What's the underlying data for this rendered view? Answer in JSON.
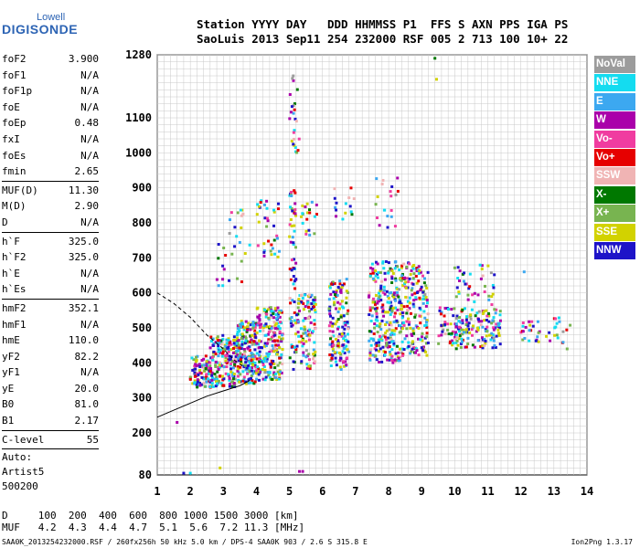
{
  "logo": {
    "line1": "Lowell",
    "line2": "DIGISONDE"
  },
  "header": {
    "row1": "Station YYYY DAY   DDD HHMMSS P1  FFS S AXN PPS IGA PS",
    "row2": "SaoLuis 2013 Sep11 254 232000 RSF 005 2 713 100 10+ 22"
  },
  "params": {
    "group1": [
      {
        "label": "foF2",
        "value": "3.900"
      },
      {
        "label": "foF1",
        "value": "N/A"
      },
      {
        "label": "foF1p",
        "value": "N/A"
      },
      {
        "label": "foE",
        "value": "N/A"
      },
      {
        "label": "foEp",
        "value": "0.48"
      },
      {
        "label": "fxI",
        "value": "N/A"
      },
      {
        "label": "foEs",
        "value": "N/A"
      },
      {
        "label": "fmin",
        "value": "2.65"
      }
    ],
    "group2": [
      {
        "label": "MUF(D)",
        "value": "11.30"
      },
      {
        "label": "M(D)",
        "value": "2.90"
      },
      {
        "label": "D",
        "value": "N/A"
      }
    ],
    "group3": [
      {
        "label": "h`F",
        "value": "325.0"
      },
      {
        "label": "h`F2",
        "value": "325.0"
      },
      {
        "label": "h`E",
        "value": "N/A"
      },
      {
        "label": "h`Es",
        "value": "N/A"
      }
    ],
    "group4": [
      {
        "label": "hmF2",
        "value": "352.1"
      },
      {
        "label": "hmF1",
        "value": "N/A"
      },
      {
        "label": "hmE",
        "value": "110.0"
      },
      {
        "label": "yF2",
        "value": "82.2"
      },
      {
        "label": "yF1",
        "value": "N/A"
      },
      {
        "label": "yE",
        "value": "20.0"
      },
      {
        "label": "B0",
        "value": "81.0"
      },
      {
        "label": "B1",
        "value": "2.17"
      }
    ],
    "group5": [
      {
        "label": "C-level",
        "value": "55"
      }
    ],
    "auto": [
      "Auto:",
      "Artist5",
      "500200"
    ]
  },
  "bottom": {
    "d_row": "D     100  200  400  600  800 1000 1500 3000 [km]",
    "muf_row": "MUF   4.2  4.3  4.4  4.7  5.1  5.6  7.2 11.3 [MHz]"
  },
  "footer": {
    "left": "SAA0K_2013254232000.RSF / 260fx256h 50 kHz 5.0 km / DPS-4 SAA0K 903 / 2.6 S 315.8 E",
    "right": "Ion2Png 1.3.17"
  },
  "legend": [
    {
      "label": "NoVal",
      "color": "#9c9c9c"
    },
    {
      "label": "NNE",
      "color": "#14dcf0"
    },
    {
      "label": "E",
      "color": "#3ca8f0"
    },
    {
      "label": "W",
      "color": "#aa00aa"
    },
    {
      "label": "Vo-",
      "color": "#f03ca0"
    },
    {
      "label": "Vo+",
      "color": "#e60000"
    },
    {
      "label": "SSW",
      "color": "#f0b4b4"
    },
    {
      "label": "X-",
      "color": "#007800"
    },
    {
      "label": "X+",
      "color": "#78b450"
    },
    {
      "label": "SSE",
      "color": "#d2d200"
    },
    {
      "label": "NNW",
      "color": "#1e14c8"
    }
  ],
  "chart_data": {
    "type": "scatter",
    "xlabel": "",
    "ylabel": "",
    "xlim": [
      1,
      14
    ],
    "ylim": [
      80,
      1280
    ],
    "x_ticks": [
      1,
      2,
      3,
      4,
      5,
      6,
      7,
      8,
      9,
      10,
      11,
      12,
      13,
      14
    ],
    "y_ticks": [
      80,
      200,
      300,
      400,
      500,
      600,
      700,
      800,
      900,
      1000,
      1100,
      1280
    ],
    "grid": true,
    "clusters": [
      {
        "x": [
          2.0,
          2.6
        ],
        "y": [
          330,
          420
        ],
        "n": 90
      },
      {
        "x": [
          2.6,
          3.4
        ],
        "y": [
          330,
          480
        ],
        "n": 180
      },
      {
        "x": [
          3.4,
          4.0
        ],
        "y": [
          340,
          520
        ],
        "n": 200
      },
      {
        "x": [
          4.0,
          4.8
        ],
        "y": [
          350,
          560
        ],
        "n": 220
      },
      {
        "x": [
          2.8,
          3.8
        ],
        "y": [
          620,
          840
        ],
        "n": 30
      },
      {
        "x": [
          4.0,
          4.7
        ],
        "y": [
          700,
          870
        ],
        "n": 35
      },
      {
        "x": [
          5.0,
          5.2
        ],
        "y": [
          380,
          900
        ],
        "n": 70
      },
      {
        "x": [
          5.2,
          5.8
        ],
        "y": [
          380,
          600
        ],
        "n": 110
      },
      {
        "x": [
          5.0,
          5.3
        ],
        "y": [
          1000,
          1230
        ],
        "n": 25
      },
      {
        "x": [
          5.3,
          5.9
        ],
        "y": [
          760,
          860
        ],
        "n": 20
      },
      {
        "x": [
          6.2,
          6.8
        ],
        "y": [
          380,
          640
        ],
        "n": 150
      },
      {
        "x": [
          6.3,
          7.0
        ],
        "y": [
          800,
          900
        ],
        "n": 15
      },
      {
        "x": [
          7.4,
          8.4
        ],
        "y": [
          400,
          690
        ],
        "n": 260
      },
      {
        "x": [
          7.6,
          8.3
        ],
        "y": [
          780,
          930
        ],
        "n": 20
      },
      {
        "x": [
          8.4,
          9.2
        ],
        "y": [
          420,
          690
        ],
        "n": 170
      },
      {
        "x": [
          9.5,
          10.0
        ],
        "y": [
          450,
          560
        ],
        "n": 35
      },
      {
        "x": [
          10.0,
          11.4
        ],
        "y": [
          440,
          560
        ],
        "n": 150
      },
      {
        "x": [
          10.0,
          11.2
        ],
        "y": [
          560,
          680
        ],
        "n": 40
      },
      {
        "x": [
          12.0,
          12.9
        ],
        "y": [
          460,
          520
        ],
        "n": 25
      },
      {
        "x": [
          13.0,
          13.5
        ],
        "y": [
          450,
          530
        ],
        "n": 15
      }
    ],
    "isolated_points": [
      {
        "x": 1.6,
        "y": 230
      },
      {
        "x": 1.8,
        "y": 85
      },
      {
        "x": 2.0,
        "y": 85
      },
      {
        "x": 2.9,
        "y": 100
      },
      {
        "x": 5.3,
        "y": 90
      },
      {
        "x": 5.4,
        "y": 90
      },
      {
        "x": 9.4,
        "y": 1270
      },
      {
        "x": 9.45,
        "y": 1210
      },
      {
        "x": 12.1,
        "y": 660
      },
      {
        "x": 13.4,
        "y": 440
      }
    ],
    "profile_dashed": {
      "x": [
        1.0,
        1.5,
        2.0,
        2.5,
        3.0,
        3.3,
        3.6
      ],
      "y": [
        600,
        570,
        530,
        480,
        440,
        410,
        390
      ]
    },
    "profile_solid": {
      "x": [
        1.0,
        1.5,
        2.0,
        2.5,
        3.0,
        3.5,
        3.8
      ],
      "y": [
        245,
        265,
        285,
        305,
        320,
        335,
        350
      ]
    }
  }
}
